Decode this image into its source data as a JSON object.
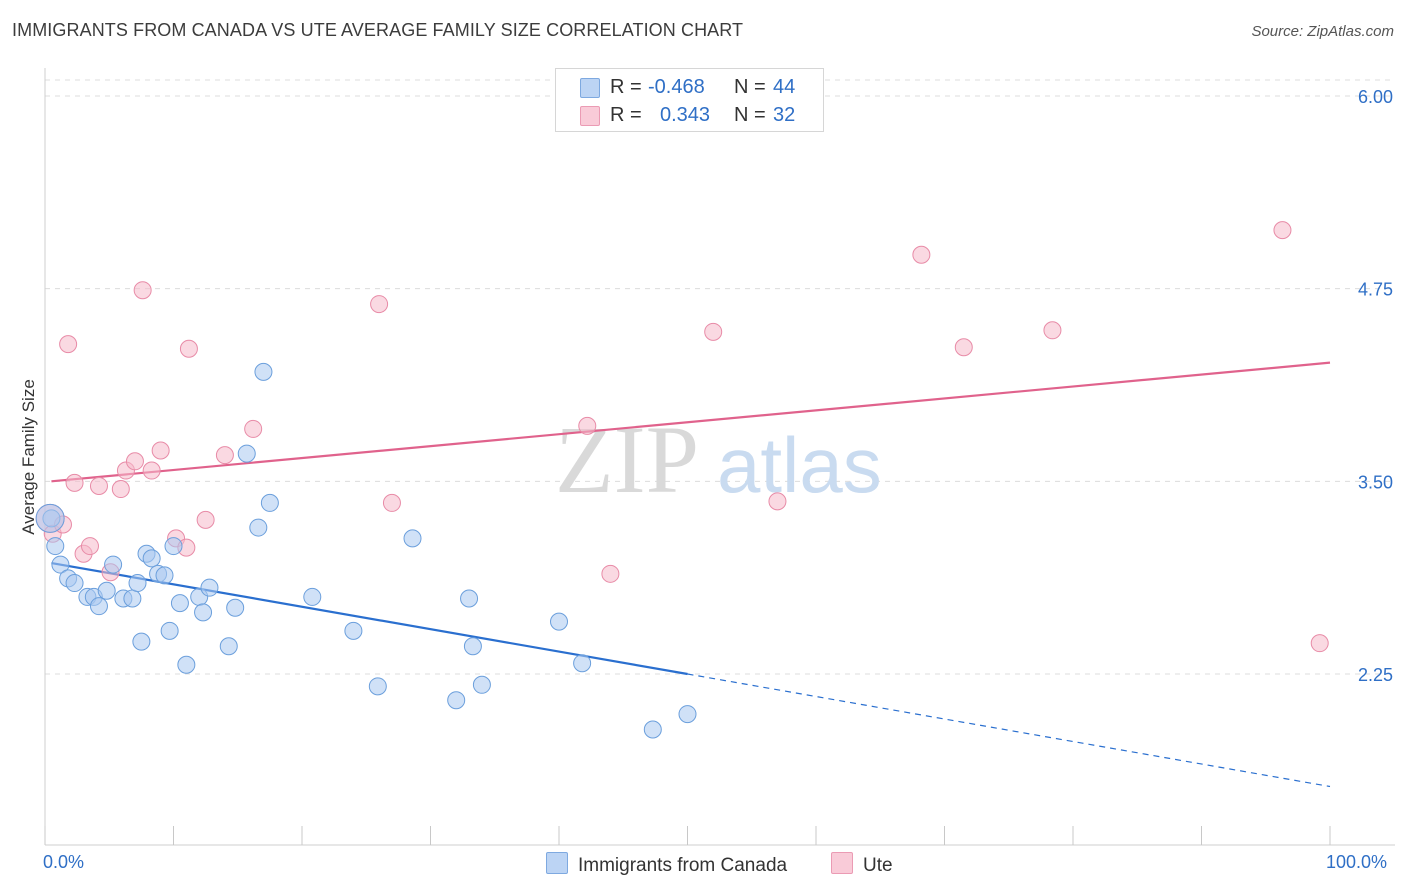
{
  "header": {
    "title": "IMMIGRANTS FROM CANADA VS UTE AVERAGE FAMILY SIZE CORRELATION CHART",
    "source": "Source: ZipAtlas.com"
  },
  "watermark": {
    "zip": "ZIP",
    "atlas": "atlas"
  },
  "legend": {
    "rows": [
      {
        "r_label": "R =",
        "r_value": "-0.468",
        "n_label": "N =",
        "n_value": "44",
        "color": "#a9c8f0"
      },
      {
        "r_label": "R =",
        "r_value": "0.343",
        "n_label": "N =",
        "n_value": "32",
        "color": "#f6b9cb"
      }
    ]
  },
  "bottom_legend": [
    {
      "label": "Immigrants from Canada",
      "color": "#a9c8f0"
    },
    {
      "label": "Ute",
      "color": "#f6b9cb"
    }
  ],
  "x_axis": {
    "min_label": "0.0%",
    "max_label": "100.0%"
  },
  "y_axis_label": "Average Family Size",
  "chart_data": {
    "type": "scatter",
    "title": "IMMIGRANTS FROM CANADA VS UTE AVERAGE FAMILY SIZE CORRELATION CHART",
    "xlabel": "",
    "ylabel": "Average Family Size",
    "xlim": [
      0,
      100
    ],
    "ylim": [
      1.25,
      6.2
    ],
    "y_ticks": [
      2.25,
      3.5,
      4.75,
      6.0
    ],
    "y_tick_labels": [
      "2.25",
      "3.50",
      "4.75",
      "6.00"
    ],
    "x_tick_labels": [
      "0.0%",
      "100.0%"
    ],
    "grid": true,
    "legend_position": "top-center",
    "series": [
      {
        "name": "Immigrants from Canada",
        "color": "#a9c8f0",
        "stroke": "#6b9fdc",
        "line_color": "#2a6fcf",
        "trend": {
          "x0": 0.5,
          "y0": 2.97,
          "x1": 50,
          "y1": 2.25,
          "dashed_to_x": 100,
          "dashed_to_y": 1.52
        },
        "points": [
          [
            0.5,
            3.26
          ],
          [
            0.8,
            3.08
          ],
          [
            1.2,
            2.96
          ],
          [
            1.8,
            2.87
          ],
          [
            2.3,
            2.84
          ],
          [
            3.3,
            2.75
          ],
          [
            3.8,
            2.75
          ],
          [
            4.2,
            2.69
          ],
          [
            4.8,
            2.79
          ],
          [
            5.3,
            2.96
          ],
          [
            6.1,
            2.74
          ],
          [
            6.8,
            2.74
          ],
          [
            7.2,
            2.84
          ],
          [
            7.5,
            2.46
          ],
          [
            7.9,
            3.03
          ],
          [
            8.3,
            3.0
          ],
          [
            8.8,
            2.9
          ],
          [
            9.3,
            2.89
          ],
          [
            9.7,
            2.53
          ],
          [
            10.0,
            3.08
          ],
          [
            10.5,
            2.71
          ],
          [
            11.0,
            2.31
          ],
          [
            12.0,
            2.75
          ],
          [
            12.3,
            2.65
          ],
          [
            12.8,
            2.81
          ],
          [
            14.3,
            2.43
          ],
          [
            14.8,
            2.68
          ],
          [
            15.7,
            3.68
          ],
          [
            17.0,
            4.21
          ],
          [
            16.6,
            3.2
          ],
          [
            17.5,
            3.36
          ],
          [
            20.8,
            2.75
          ],
          [
            24.0,
            2.53
          ],
          [
            25.9,
            2.17
          ],
          [
            28.6,
            3.13
          ],
          [
            32.0,
            2.08
          ],
          [
            33.0,
            2.74
          ],
          [
            33.3,
            2.43
          ],
          [
            34.0,
            2.18
          ],
          [
            40.0,
            2.59
          ],
          [
            41.8,
            2.32
          ],
          [
            47.3,
            1.89
          ],
          [
            50.0,
            1.99
          ],
          [
            0.4,
            3.26
          ]
        ]
      },
      {
        "name": "Ute",
        "color": "#f6b9cb",
        "stroke": "#e88ba7",
        "line_color": "#e0628c",
        "trend": {
          "x0": 0.5,
          "y0": 3.5,
          "x1": 100,
          "y1": 4.27
        },
        "points": [
          [
            0.4,
            3.26
          ],
          [
            0.6,
            3.16
          ],
          [
            1.4,
            3.22
          ],
          [
            1.8,
            4.39
          ],
          [
            2.3,
            3.49
          ],
          [
            3.0,
            3.03
          ],
          [
            3.5,
            3.08
          ],
          [
            4.2,
            3.47
          ],
          [
            5.1,
            2.91
          ],
          [
            5.9,
            3.45
          ],
          [
            6.3,
            3.57
          ],
          [
            7.0,
            3.63
          ],
          [
            7.6,
            4.74
          ],
          [
            8.3,
            3.57
          ],
          [
            9.0,
            3.7
          ],
          [
            10.2,
            3.13
          ],
          [
            11.0,
            3.07
          ],
          [
            11.2,
            4.36
          ],
          [
            12.5,
            3.25
          ],
          [
            14.0,
            3.67
          ],
          [
            16.2,
            3.84
          ],
          [
            26.0,
            4.65
          ],
          [
            27.0,
            3.36
          ],
          [
            42.2,
            3.86
          ],
          [
            44.0,
            2.9
          ],
          [
            52.0,
            4.47
          ],
          [
            57.0,
            3.37
          ],
          [
            68.2,
            4.97
          ],
          [
            71.5,
            4.37
          ],
          [
            78.4,
            4.48
          ],
          [
            96.3,
            5.13
          ],
          [
            99.2,
            2.45
          ]
        ]
      }
    ]
  }
}
